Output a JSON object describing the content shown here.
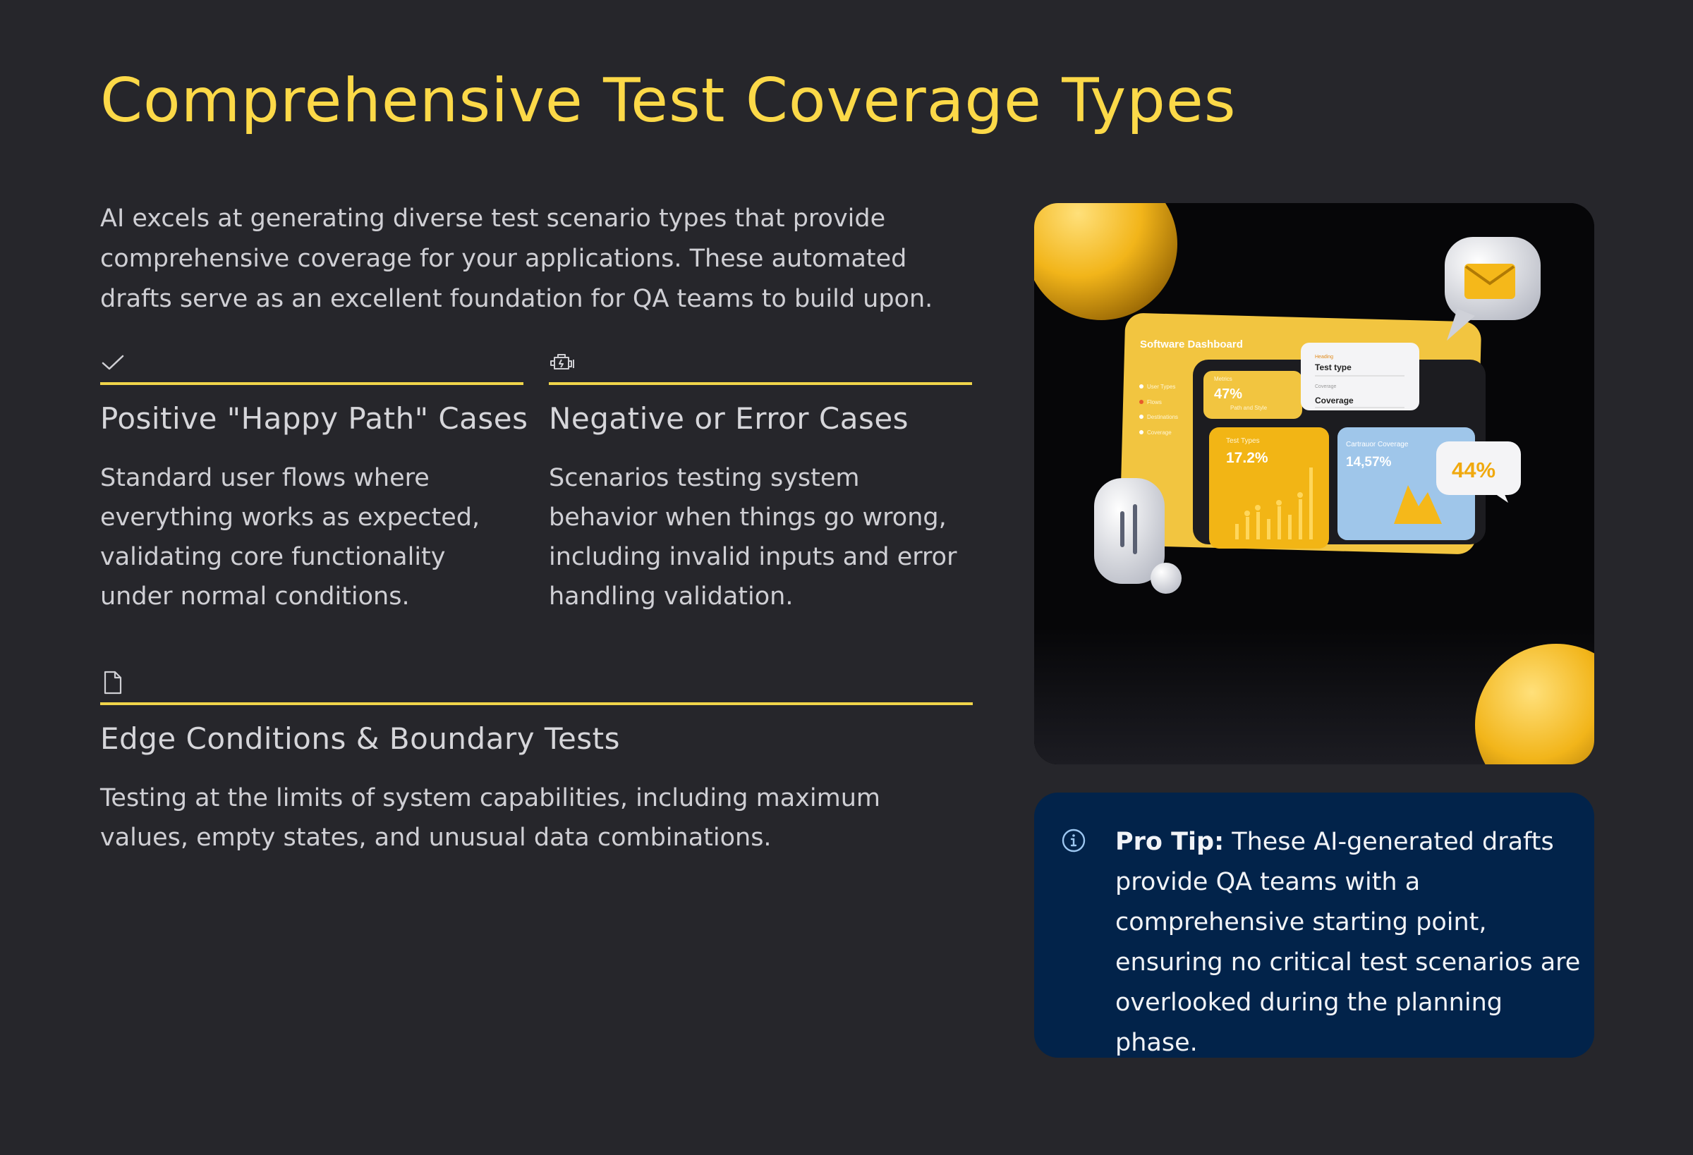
{
  "title": "Comprehensive Test Coverage Types",
  "intro": "AI excels at generating diverse test scenario types that provide comprehensive coverage for your applications. These automated drafts serve as an excellent foundation for QA teams to build upon.",
  "cards": [
    {
      "icon": "checkmark-icon",
      "heading": "Positive \"Happy Path\" Cases",
      "body": "Standard user flows where everything works as expected, validating core functionality under normal conditions."
    },
    {
      "icon": "engine-icon",
      "heading": "Negative or Error Cases",
      "body": "Scenarios testing system behavior when things go wrong, including invalid inputs and error handling validation."
    },
    {
      "icon": "document-icon",
      "heading": "Edge Conditions & Boundary Tests",
      "body": "Testing at the limits of system capabilities, including maximum values, empty states, and unusual data combinations."
    }
  ],
  "hero_image": {
    "dashboard_title": "Software Dashboard",
    "nav_items": [
      "User Types",
      "Flows",
      "Destinations",
      "Coverage"
    ],
    "metric_1_label": "Metrics",
    "metric_1_value": "47%",
    "metric_1_sub": "Path and Style",
    "metric_2_label": "Test Types",
    "metric_2_value": "17.2%",
    "metric_3_label": "Cartrauor Coverage",
    "metric_3_value": "14,57%",
    "popup_label_1": "Heading",
    "popup_field_1": "Test type",
    "popup_label_2": "Coverage",
    "popup_field_2": "Coverage",
    "badge_value": "44%",
    "colors": {
      "accent": "#f5b81a",
      "panel": "#f2c540",
      "blue": "#9fc6ea"
    }
  },
  "tip": {
    "icon": "info-icon",
    "label": "Pro Tip:",
    "text": " These AI-generated drafts provide QA teams with a comprehensive starting point, ensuring no critical test scenarios are overlooked during the planning phase."
  },
  "colors": {
    "background": "#26262b",
    "accent": "#fcd948",
    "rule": "#f0d44a",
    "tip_bg": "#02234a"
  }
}
